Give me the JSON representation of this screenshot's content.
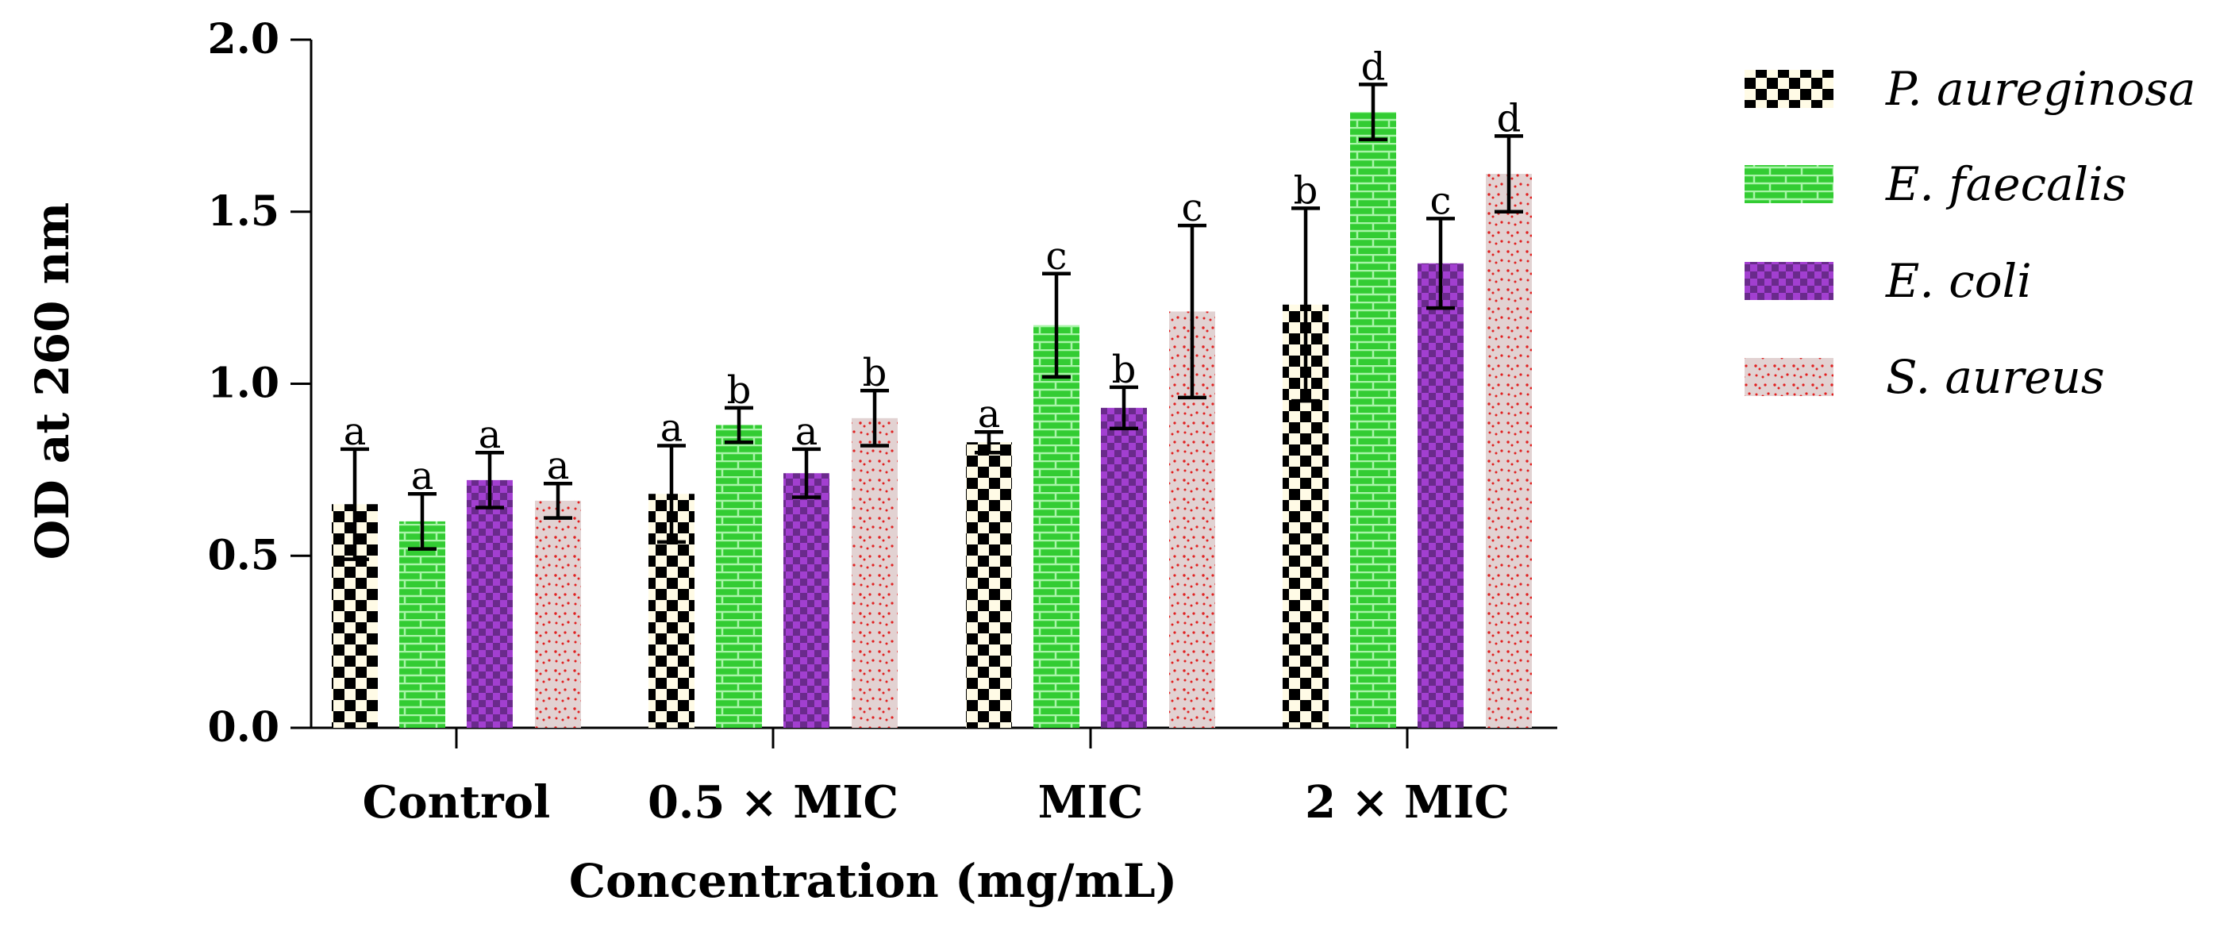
{
  "colors": {
    "p_aureginosa_dark": "#000000",
    "p_aureginosa_light": "#fffbe6",
    "e_faecalis_green": "#33cc33",
    "e_faecalis_line": "#a0f0a0",
    "e_coli_dark": "#6a2a8c",
    "e_coli_light": "#a23fd0",
    "s_aureus_bg": "#e2d2d2",
    "s_aureus_dot": "#e02020"
  },
  "chart_data": {
    "type": "bar",
    "title": "",
    "xlabel": "Concentration (mg/mL)",
    "ylabel": "OD at 260 nm",
    "ylim": [
      0,
      2.0
    ],
    "yticks": [
      0.0,
      0.5,
      1.0,
      1.5,
      2.0
    ],
    "ytick_labels": [
      "0.0",
      "0.5",
      "1.0",
      "1.5",
      "2.0"
    ],
    "categories": [
      "Control",
      "0.5 × MIC",
      "MIC",
      "2 × MIC"
    ],
    "legend_position": "right",
    "series": [
      {
        "name": "P. aureginosa",
        "pattern": "checker",
        "values": [
          0.65,
          0.68,
          0.83,
          1.23
        ],
        "errors": [
          0.16,
          0.14,
          0.03,
          0.28
        ],
        "labels": [
          "a",
          "a",
          "a",
          "b"
        ]
      },
      {
        "name": "E. faecalis",
        "pattern": "brick",
        "values": [
          0.6,
          0.88,
          1.17,
          1.79
        ],
        "errors": [
          0.08,
          0.05,
          0.15,
          0.08
        ],
        "labels": [
          "a",
          "b",
          "c",
          "d"
        ]
      },
      {
        "name": "E. coli",
        "pattern": "checker-purple",
        "values": [
          0.72,
          0.74,
          0.93,
          1.35
        ],
        "errors": [
          0.08,
          0.07,
          0.06,
          0.13
        ],
        "labels": [
          "a",
          "a",
          "b",
          "c"
        ]
      },
      {
        "name": "S. aureus",
        "pattern": "dots",
        "values": [
          0.66,
          0.9,
          1.21,
          1.61
        ],
        "errors": [
          0.05,
          0.08,
          0.25,
          0.11
        ],
        "labels": [
          "a",
          "b",
          "c",
          "d"
        ]
      }
    ]
  }
}
